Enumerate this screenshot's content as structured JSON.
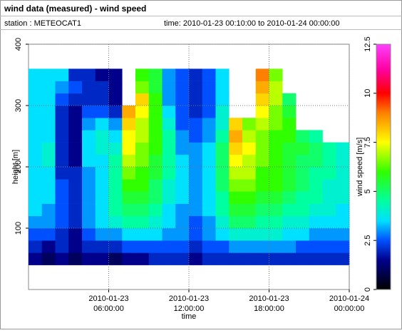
{
  "header": {
    "title": "wind data (measured) - wind speed",
    "station": "station : METEOCAT1",
    "time": "time: 2010-01-23 00:10:00 to 2010-01-24 00:00:00"
  },
  "chart_data": {
    "type": "heatmap",
    "xlabel": "time",
    "ylabel": "height [m]",
    "colorbar_label": "wind speed [m/s]",
    "xlim": [
      0,
      24
    ],
    "ylim": [
      0,
      400
    ],
    "xticks": [
      {
        "value": 6,
        "label": "2010-01-23 06:00:00"
      },
      {
        "value": 12,
        "label": "2010-01-23 12:00:00"
      },
      {
        "value": 18,
        "label": "2010-01-23 18:00:00"
      },
      {
        "value": 24,
        "label": "2010-01-24 00:00:00"
      }
    ],
    "yticks": [
      100,
      200,
      300,
      400
    ],
    "grid": true,
    "zlim": [
      0,
      12.5
    ],
    "zticks": [
      0,
      2.5,
      5,
      7.5,
      10,
      12.5
    ],
    "colorscale": [
      [
        0,
        "#000000"
      ],
      [
        1.5,
        "#00008b"
      ],
      [
        2.5,
        "#0050ff"
      ],
      [
        3.5,
        "#00e0ff"
      ],
      [
        4.5,
        "#00ffa0"
      ],
      [
        6,
        "#30ff00"
      ],
      [
        7.5,
        "#ffff00"
      ],
      [
        9,
        "#ff8000"
      ],
      [
        10,
        "#ff0000"
      ],
      [
        11.2,
        "#ff00a0"
      ],
      [
        12.5,
        "#ff40ff"
      ]
    ],
    "x": [
      0.5,
      1.5,
      2.5,
      3.5,
      4.5,
      5.5,
      6.5,
      7.5,
      8.5,
      9.5,
      10.5,
      11.5,
      12.5,
      13.5,
      14.5,
      15.5,
      16.5,
      17.5,
      18.5,
      19.5,
      20.5,
      21.5,
      22.5,
      23.5
    ],
    "y": [
      50,
      70,
      90,
      110,
      130,
      150,
      170,
      190,
      210,
      230,
      250,
      270,
      290,
      310,
      330,
      350
    ],
    "z": [
      [
        1.5,
        1,
        1.5,
        1,
        1.5,
        1.5,
        1,
        1.5,
        1.5,
        2,
        2,
        2,
        1.5,
        2,
        2,
        2,
        2,
        2,
        2,
        2,
        2,
        2,
        2,
        2
      ],
      [
        2,
        1.5,
        2,
        1.5,
        2,
        2,
        2,
        2.5,
        2.5,
        2.5,
        2.5,
        2.5,
        2,
        2.5,
        2.5,
        3,
        3,
        3,
        3,
        3,
        2.5,
        2.5,
        2.5,
        2.5
      ],
      [
        2.5,
        2.5,
        2,
        1.5,
        2.5,
        3,
        3,
        3.5,
        3.5,
        3.5,
        3,
        3,
        2.5,
        3,
        3.5,
        4,
        4,
        4,
        4,
        3.5,
        3.5,
        3,
        3,
        3
      ],
      [
        3,
        3,
        2.5,
        2,
        3,
        3.5,
        4,
        4.5,
        4.5,
        4,
        3.5,
        3,
        2.5,
        3,
        4,
        5,
        5,
        4.5,
        4.5,
        4,
        4,
        3.5,
        3.5,
        3.5
      ],
      [
        3.5,
        3,
        2.5,
        2,
        3,
        3.5,
        4.5,
        5,
        5,
        4.5,
        3.5,
        3,
        3,
        3.5,
        4.5,
        5.5,
        5.5,
        5,
        5,
        4.5,
        4.5,
        4,
        4,
        3.5
      ],
      [
        3.5,
        3.5,
        2.5,
        2,
        3,
        3.5,
        4.5,
        5.5,
        5.5,
        5,
        4,
        3.5,
        3,
        3.5,
        4.5,
        6,
        6,
        5.5,
        5.5,
        5,
        4.5,
        4.5,
        4,
        4
      ],
      [
        3.5,
        3.5,
        2.5,
        2,
        3,
        3.5,
        4.5,
        6,
        6,
        5,
        4,
        3.5,
        3,
        3.5,
        5,
        6.5,
        6.5,
        6,
        6,
        5.5,
        5,
        4.5,
        4,
        4
      ],
      [
        3.5,
        3.5,
        2,
        2,
        3,
        3.5,
        4.5,
        6.5,
        6,
        5.5,
        4.5,
        3.5,
        3,
        3.5,
        5,
        7,
        7,
        6,
        6,
        5.5,
        5,
        4.5,
        4.5,
        4
      ],
      [
        3.5,
        4,
        2,
        1.5,
        3.5,
        3.5,
        4.5,
        7,
        6.5,
        5.5,
        4.5,
        3.5,
        3,
        3.5,
        5,
        7.5,
        7,
        6.5,
        6,
        5.5,
        5,
        5,
        4.5,
        4
      ],
      [
        3.5,
        4,
        2,
        1.5,
        3.5,
        4,
        4,
        7.5,
        6.5,
        6,
        4.5,
        3,
        3,
        3.5,
        5,
        8,
        7.5,
        6.5,
        6,
        5.5,
        5.5,
        5,
        4.5,
        4
      ],
      [
        3.5,
        3.5,
        2,
        1.5,
        3.5,
        4,
        3.5,
        7.5,
        7,
        6,
        4.5,
        3,
        2.5,
        3,
        4.5,
        8.5,
        7,
        6.5,
        6,
        6,
        5,
        4.5,
        null,
        null
      ],
      [
        3.5,
        3.5,
        2,
        1.5,
        3,
        3.5,
        3,
        8,
        7,
        6,
        4,
        2.5,
        2.5,
        3,
        4,
        8,
        6.5,
        7,
        6.5,
        6,
        null,
        null,
        null,
        null
      ],
      [
        3.5,
        3.5,
        2,
        1.5,
        2.5,
        2.5,
        2,
        8.5,
        7.5,
        6,
        3.5,
        2.5,
        2,
        2.5,
        4,
        null,
        null,
        7.5,
        6.5,
        5.5,
        null,
        null,
        null,
        null
      ],
      [
        3.5,
        3.5,
        2.5,
        2,
        2,
        2,
        1.5,
        null,
        8,
        6,
        3,
        2.5,
        2,
        2.5,
        3.5,
        null,
        null,
        8,
        7,
        5,
        null,
        null,
        null,
        null
      ],
      [
        3.5,
        3.5,
        3,
        2.5,
        2,
        2,
        1.5,
        null,
        6.5,
        5.5,
        3,
        2.5,
        2,
        2.5,
        3.5,
        null,
        null,
        8.5,
        7,
        null,
        null,
        null,
        null,
        null
      ],
      [
        3.5,
        3.5,
        3.5,
        2,
        2,
        1.5,
        1.5,
        null,
        6,
        5.5,
        3,
        2.5,
        2,
        2.5,
        3.5,
        null,
        null,
        9,
        6.5,
        null,
        null,
        null,
        null,
        null
      ]
    ]
  }
}
